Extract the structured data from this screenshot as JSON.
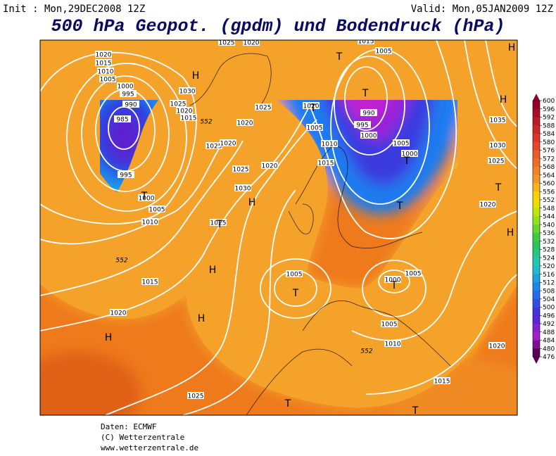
{
  "header": {
    "init": "Init : Mon,29DEC2008 12Z",
    "valid": "Valid: Mon,05JAN2009 12Z",
    "title": "500 hPa Geopot. (gpdm) und Bodendruck (hPa)"
  },
  "colorbar": {
    "labels": [
      600,
      596,
      592,
      588,
      584,
      580,
      576,
      572,
      568,
      564,
      560,
      556,
      552,
      548,
      544,
      540,
      536,
      532,
      528,
      524,
      520,
      516,
      512,
      508,
      504,
      500,
      496,
      492,
      488,
      484,
      480,
      476
    ]
  },
  "map": {
    "isobar_labels": [
      "1020",
      "1015",
      "1010",
      "1005",
      "1000",
      "995",
      "990",
      "985",
      "995",
      "1000",
      "1005",
      "1010",
      "1015",
      "1020",
      "1025",
      "1030",
      "1025",
      "1020",
      "1015",
      "1025",
      "1020",
      "1025",
      "1020",
      "1030",
      "1025",
      "1025",
      "1020",
      "1020",
      "1005",
      "1010",
      "1015",
      "995",
      "990",
      "1000",
      "1005",
      "1005",
      "1000",
      "1035",
      "1030",
      "1025",
      "1020",
      "1005",
      "1000",
      "1005",
      "1005",
      "1010",
      "1015",
      "1020",
      "1025",
      "1020",
      "1015"
    ],
    "height_labels": [
      "552",
      "552",
      "552"
    ],
    "pressure_centers": [
      "H",
      "H",
      "H",
      "H",
      "H",
      "H",
      "H",
      "H",
      "T",
      "T",
      "T",
      "T",
      "T",
      "T",
      "T",
      "T",
      "T",
      "T",
      "T",
      "T"
    ]
  },
  "footer": {
    "source": "Daten: ECMWF",
    "copyright": "(C) Wetterzentrale",
    "url": "www.wetterzentrale.de"
  }
}
